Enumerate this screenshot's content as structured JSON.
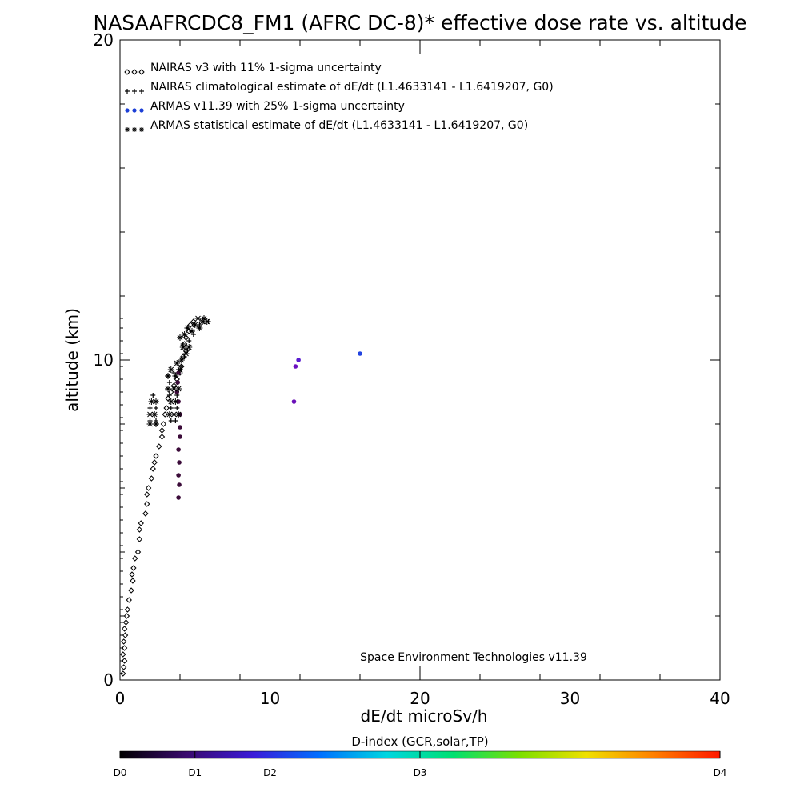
{
  "chart_data": {
    "type": "scatter",
    "title": "NASAAFRCDC8_FM1 (AFRC DC-8)* effective dose rate vs. altitude",
    "xlabel": "dE/dt microSv/h",
    "ylabel": "altitude (km)",
    "xlim": [
      0,
      40
    ],
    "ylim": [
      0,
      20
    ],
    "x_ticks": [
      0,
      10,
      20,
      30,
      40
    ],
    "y_ticks": [
      0,
      10,
      20
    ],
    "grid": false,
    "legend_position": "top-left",
    "legend": [
      {
        "symbol": "◇◇◇",
        "color": "#000000",
        "label": "NAIRAS v3 with 11% 1-sigma uncertainty"
      },
      {
        "symbol": "+++",
        "color": "#000000",
        "label": "NAIRAS climatological estimate of dE/dt (L1.4633141 - L1.6419207, G0)"
      },
      {
        "symbol": "●●●",
        "color": "#1c3fd6",
        "label": "ARMAS v11.39 with 25% 1-sigma uncertainty"
      },
      {
        "symbol": "✳✳✳",
        "color": "#000000",
        "label": "ARMAS statistical estimate of dE/dt (L1.4633141 - L1.6419207, G0)"
      }
    ],
    "annotation": "Space Environment Technologies v11.39",
    "series": [
      {
        "name": "NAIRAS v3 with 11% 1-sigma uncertainty",
        "marker": "diamond",
        "color": "#000000",
        "points": [
          [
            0.2,
            0.2
          ],
          [
            0.25,
            0.4
          ],
          [
            0.3,
            0.6
          ],
          [
            0.2,
            0.8
          ],
          [
            0.3,
            1.0
          ],
          [
            0.25,
            1.2
          ],
          [
            0.35,
            1.4
          ],
          [
            0.3,
            1.6
          ],
          [
            0.4,
            1.8
          ],
          [
            0.45,
            2.0
          ],
          [
            0.5,
            2.2
          ],
          [
            0.6,
            2.5
          ],
          [
            0.75,
            2.8
          ],
          [
            0.85,
            3.1
          ],
          [
            0.8,
            3.3
          ],
          [
            0.9,
            3.5
          ],
          [
            1.0,
            3.8
          ],
          [
            1.2,
            4.0
          ],
          [
            1.3,
            4.4
          ],
          [
            1.3,
            4.7
          ],
          [
            1.4,
            4.9
          ],
          [
            1.7,
            5.2
          ],
          [
            1.8,
            5.5
          ],
          [
            1.8,
            5.8
          ],
          [
            1.9,
            6.0
          ],
          [
            2.1,
            6.3
          ],
          [
            2.2,
            6.6
          ],
          [
            2.3,
            6.8
          ],
          [
            2.4,
            7.0
          ],
          [
            2.6,
            7.3
          ],
          [
            2.8,
            7.6
          ],
          [
            2.8,
            7.8
          ],
          [
            2.9,
            8.0
          ],
          [
            3.0,
            8.3
          ],
          [
            3.1,
            8.5
          ],
          [
            3.2,
            8.8
          ],
          [
            3.4,
            9.0
          ],
          [
            3.6,
            9.2
          ],
          [
            3.8,
            9.4
          ],
          [
            4.0,
            9.6
          ],
          [
            4.1,
            9.8
          ],
          [
            4.2,
            10.1
          ],
          [
            4.4,
            10.3
          ],
          [
            4.3,
            10.5
          ],
          [
            4.4,
            10.7
          ],
          [
            4.6,
            10.9
          ],
          [
            4.7,
            11.1
          ],
          [
            4.9,
            11.2
          ]
        ]
      },
      {
        "name": "NAIRAS climatological estimate of dE/dt (L1.4633141 - L1.6419207, G0)",
        "marker": "plus",
        "color": "#000000",
        "points": [
          [
            2.0,
            8.1
          ],
          [
            2.4,
            8.1
          ],
          [
            2.0,
            8.5
          ],
          [
            2.4,
            8.5
          ],
          [
            2.2,
            8.9
          ],
          [
            3.4,
            8.1
          ],
          [
            3.7,
            8.1
          ],
          [
            3.4,
            8.5
          ],
          [
            3.8,
            8.5
          ],
          [
            3.3,
            8.9
          ],
          [
            3.8,
            8.9
          ],
          [
            3.3,
            9.3
          ],
          [
            3.8,
            9.3
          ],
          [
            3.2,
            9.5
          ],
          [
            3.6,
            9.6
          ],
          [
            3.9,
            9.7
          ],
          [
            4.1,
            9.8
          ],
          [
            4.3,
            10.1
          ],
          [
            4.5,
            10.3
          ],
          [
            4.2,
            10.5
          ],
          [
            4.6,
            10.6
          ],
          [
            4.9,
            10.8
          ],
          [
            5.0,
            11.1
          ],
          [
            5.3,
            11.1
          ],
          [
            5.6,
            11.2
          ],
          [
            5.9,
            11.2
          ]
        ]
      },
      {
        "name": "ARMAS v11.39 with 25% 1-sigma uncertainty",
        "marker": "dot",
        "color_by": "D-index",
        "points": [
          [
            3.9,
            5.7
          ],
          [
            3.95,
            6.1
          ],
          [
            3.9,
            6.4
          ],
          [
            3.95,
            6.8
          ],
          [
            3.9,
            7.2
          ],
          [
            4.0,
            7.6
          ],
          [
            4.0,
            7.9
          ],
          [
            4.0,
            8.3
          ],
          [
            3.9,
            8.7
          ],
          [
            3.8,
            9.0
          ],
          [
            3.85,
            9.3
          ],
          [
            3.9,
            9.6
          ],
          [
            11.6,
            8.7
          ],
          [
            11.7,
            9.8
          ],
          [
            11.9,
            10.0
          ],
          [
            16.0,
            10.2
          ]
        ],
        "colors": [
          "#3b0b39",
          "#3b0b39",
          "#3b0b39",
          "#3b0b39",
          "#3b0b39",
          "#3b0b39",
          "#3b0b39",
          "#3b0b39",
          "#3b0b39",
          "#3b0b39",
          "#3b0b39",
          "#3b0b39",
          "#6a10b8",
          "#6a10c0",
          "#5a1bd0",
          "#2244e0"
        ]
      },
      {
        "name": "ARMAS statistical estimate of dE/dt (L1.4633141 - L1.6419207, G0)",
        "marker": "asterisk",
        "color": "#000000",
        "points": [
          [
            2.0,
            8.3
          ],
          [
            2.3,
            8.3
          ],
          [
            2.1,
            8.7
          ],
          [
            2.4,
            8.7
          ],
          [
            2.0,
            8.0
          ],
          [
            2.4,
            8.0
          ],
          [
            3.3,
            8.3
          ],
          [
            3.6,
            8.3
          ],
          [
            3.9,
            8.3
          ],
          [
            3.4,
            8.7
          ],
          [
            3.7,
            8.7
          ],
          [
            3.2,
            9.1
          ],
          [
            3.6,
            9.1
          ],
          [
            3.9,
            9.1
          ],
          [
            3.2,
            9.5
          ],
          [
            3.4,
            9.7
          ],
          [
            3.7,
            9.5
          ],
          [
            4.0,
            9.7
          ],
          [
            3.8,
            9.9
          ],
          [
            4.1,
            10.0
          ],
          [
            4.4,
            10.2
          ],
          [
            4.2,
            10.4
          ],
          [
            4.6,
            10.4
          ],
          [
            4.0,
            10.7
          ],
          [
            4.3,
            10.8
          ],
          [
            4.8,
            10.9
          ],
          [
            4.5,
            11.0
          ],
          [
            5.0,
            11.1
          ],
          [
            5.3,
            11.0
          ],
          [
            5.5,
            11.2
          ],
          [
            5.8,
            11.2
          ],
          [
            5.2,
            11.3
          ],
          [
            5.6,
            11.3
          ]
        ]
      },
      {
        "name": "",
        "marker": "tick",
        "color": "#000000",
        "points": [
          [
            0,
            0.2
          ],
          [
            0,
            0.6
          ],
          [
            0,
            1.0
          ],
          [
            0,
            1.4
          ],
          [
            0,
            1.8
          ],
          [
            0,
            2.2
          ],
          [
            0,
            2.6
          ],
          [
            0,
            3.0
          ],
          [
            0,
            3.4
          ],
          [
            0,
            3.8
          ],
          [
            0,
            4.2
          ],
          [
            0,
            4.6
          ],
          [
            0,
            5.0
          ],
          [
            0,
            5.4
          ],
          [
            0,
            5.8
          ],
          [
            0,
            6.2
          ],
          [
            0,
            6.6
          ],
          [
            0,
            7.0
          ],
          [
            0,
            7.4
          ],
          [
            0,
            7.8
          ],
          [
            0,
            8.2
          ],
          [
            0,
            8.6
          ],
          [
            0,
            9.0
          ],
          [
            0,
            9.4
          ],
          [
            0,
            9.8
          ],
          [
            0,
            10.2
          ],
          [
            0,
            10.6
          ],
          [
            0,
            11.0
          ],
          [
            0,
            11.3
          ]
        ]
      }
    ],
    "colorbar": {
      "title": "D-index (GCR,solar,TP)",
      "ticks": [
        {
          "label": "D0",
          "position": 0.0
        },
        {
          "label": "D1",
          "position": 0.125
        },
        {
          "label": "D2",
          "position": 0.25
        },
        {
          "label": "D3",
          "position": 0.5
        },
        {
          "label": "D4",
          "position": 1.0
        }
      ],
      "stops": [
        "#000000",
        "#3a0a6e",
        "#3b1bd8",
        "#0070ff",
        "#00d6e0",
        "#00e070",
        "#7ce000",
        "#f0e000",
        "#ff8000",
        "#ff1800"
      ]
    }
  }
}
